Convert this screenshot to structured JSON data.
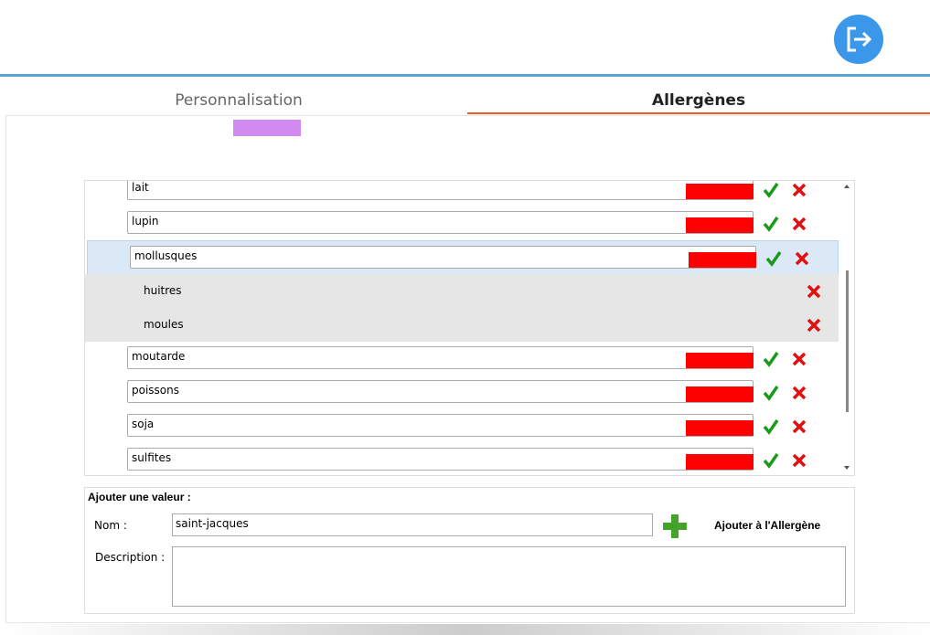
{
  "tabs": [
    "Personnalisation",
    "Allergènes"
  ],
  "allergens": [
    {
      "name": "lait"
    },
    {
      "name": "lupin"
    },
    {
      "name": "mollusques",
      "values": [
        "huitres",
        "moules"
      ]
    },
    {
      "name": "moutarde"
    },
    {
      "name": "poissons"
    },
    {
      "name": "soja"
    },
    {
      "name": "sulfites"
    }
  ],
  "form": {
    "title": "Ajouter une valeur :",
    "name_label": "Nom :",
    "name_value": "saint-jacques",
    "add_button": "Ajouter à l'Allergène",
    "description_label": "Description :"
  }
}
